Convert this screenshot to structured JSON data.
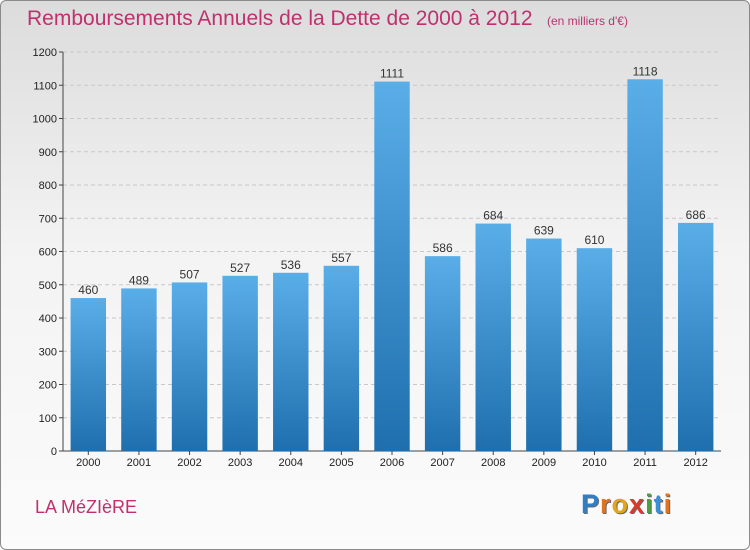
{
  "title": "Remboursements Annuels de la Dette de 2000 à 2012",
  "subtitle": "(en milliers d'€)",
  "commune": "LA MéZIèRE",
  "logo": {
    "letters": [
      "P",
      "r",
      "o",
      "x",
      "i",
      "t",
      "i"
    ],
    "colors": [
      "#2f7fc8",
      "#e0731f",
      "#e2a51b",
      "#d63b2b",
      "#4aa03a",
      "#3a8fd6",
      "#e0731f"
    ]
  },
  "colors": {
    "bar_top": "#5aaee8",
    "bar_bottom": "#1f6fae",
    "title": "#c0306f"
  },
  "chart_data": {
    "type": "bar",
    "categories": [
      "2000",
      "2001",
      "2002",
      "2003",
      "2004",
      "2005",
      "2006",
      "2007",
      "2008",
      "2009",
      "2010",
      "2011",
      "2012"
    ],
    "values": [
      460,
      489,
      507,
      527,
      536,
      557,
      1111,
      586,
      684,
      639,
      610,
      1118,
      686
    ],
    "title": "Remboursements Annuels de la Dette de 2000 à 2012",
    "ylabel": "",
    "xlabel": "",
    "ylim": [
      0,
      1200
    ],
    "yticks": [
      0,
      100,
      200,
      300,
      400,
      500,
      600,
      700,
      800,
      900,
      1000,
      1100,
      1200
    ],
    "grid": true
  }
}
